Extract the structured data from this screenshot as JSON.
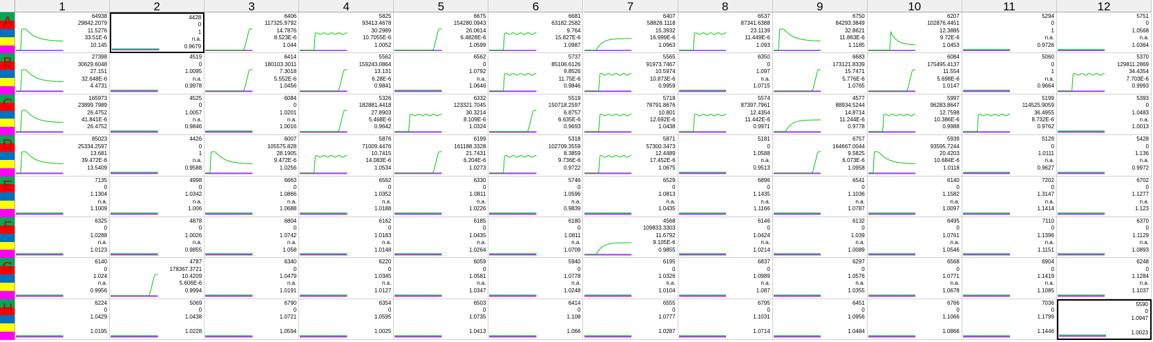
{
  "plate": {
    "columns": [
      "1",
      "2",
      "3",
      "4",
      "5",
      "6",
      "7",
      "8",
      "9",
      "10",
      "11",
      "12"
    ],
    "rows": [
      "A",
      "B",
      "C",
      "D",
      "E",
      "F",
      "G",
      "H"
    ],
    "row_strip_colors": [
      "#00a651",
      "#ff0000",
      "#0070c0",
      "#ffff00",
      "#ff00ff"
    ],
    "trace_color": "#00c800",
    "baseline_color": "#e000e0",
    "baseline2_color": "#4060ff",
    "selected_wells": [
      "A2",
      "H12"
    ],
    "wells": {
      "A1": {
        "v": [
          "64938",
          "29842.2079",
          "11.5276",
          "33.51E-6",
          "10.145"
        ],
        "trace": "peak"
      },
      "A2": {
        "v": [
          "4428",
          "0",
          "1",
          "n.a.",
          "0.9679"
        ],
        "trace": "flat"
      },
      "A3": {
        "v": [
          "6406",
          "117325.9792",
          "14.7876",
          "8.523E-6",
          "1.044"
        ],
        "trace": "late"
      },
      "A4": {
        "v": [
          "5825",
          "93413.4678",
          "30.2989",
          "10.7055E-6",
          "1.0052"
        ],
        "trace": "step"
      },
      "A5": {
        "v": [
          "6675",
          "154280.0943",
          "26.0614",
          "6.4828E-6",
          "1.0599"
        ],
        "trace": "late"
      },
      "A6": {
        "v": [
          "6681",
          "63182.2582",
          "9.764",
          "15.827E-6",
          "1.0987"
        ],
        "trace": "step"
      },
      "A7": {
        "v": [
          "6407",
          "58828.1118",
          "15.3932",
          "16.999E-6",
          "1.0963"
        ],
        "trace": "slow"
      },
      "A8": {
        "v": [
          "6537",
          "87341.6388",
          "23.1139",
          "11.449E-6",
          "1.093"
        ],
        "trace": "step"
      },
      "A9": {
        "v": [
          "6750",
          "84293.3849",
          "32.8621",
          "11.863E-6",
          "1.1185"
        ],
        "trace": "peak"
      },
      "A10": {
        "v": [
          "6207",
          "102876.4451",
          "12.3885",
          "9.72E-6",
          "1.0453"
        ],
        "trace": "mid"
      },
      "A11": {
        "v": [
          "5294",
          "0",
          "1",
          "n.a.",
          "0.9726"
        ],
        "trace": "flat"
      },
      "A12": {
        "v": [
          "5751",
          "0",
          "1.0568",
          "n.a.",
          "1.0364"
        ],
        "trace": "flat"
      },
      "B1": {
        "v": [
          "27398",
          "30629.6048",
          "27.151",
          "32.648E-6",
          "4.4731"
        ],
        "trace": "peak"
      },
      "B2": {
        "v": [
          "4519",
          "0",
          "1.0095",
          "n.a.",
          "0.9978"
        ],
        "trace": "flat"
      },
      "B3": {
        "v": [
          "6414",
          "180103.3011",
          "7.3018",
          "5.552E-6",
          "1.0456"
        ],
        "trace": "late"
      },
      "B4": {
        "v": [
          "5562",
          "159243.0864",
          "13.131",
          "6.28E-6",
          "0.9841"
        ],
        "trace": "late"
      },
      "B5": {
        "v": [
          "6562",
          "0",
          "1.0792",
          "n.a.",
          "1.0646"
        ],
        "trace": "flat"
      },
      "B6": {
        "v": [
          "5737",
          "85106.6126",
          "9.8526",
          "11.75E-6",
          "0.9846"
        ],
        "trace": "step"
      },
      "B7": {
        "v": [
          "5565",
          "91973.7467",
          "10.5974",
          "10.873E-6",
          "0.9959"
        ],
        "trace": "step"
      },
      "B8": {
        "v": [
          "6350",
          "0",
          "1.097",
          "n.a.",
          "1.0715"
        ],
        "trace": "flat"
      },
      "B9": {
        "v": [
          "6683",
          "173121.8339",
          "15.7471",
          "5.776E-6",
          "1.0765"
        ],
        "trace": "late"
      },
      "B10": {
        "v": [
          "6084",
          "175495.4137",
          "11.554",
          "5.698E-6",
          "1.0147"
        ],
        "trace": "late"
      },
      "B11": {
        "v": [
          "5060",
          "0",
          "1",
          "n.a.",
          "0.9664"
        ],
        "trace": "flat"
      },
      "B12": {
        "v": [
          "5370",
          "129811.2869",
          "34.4354",
          "7.703E-6",
          "0.9993"
        ],
        "trace": "step"
      },
      "C1": {
        "v": [
          "165973",
          "23899.7989",
          "26.4752",
          "41.841E-6",
          "26.4752"
        ],
        "trace": "peak"
      },
      "C2": {
        "v": [
          "4525",
          "0",
          "1.0057",
          "n.a.",
          "0.9846"
        ],
        "trace": "flat"
      },
      "C3": {
        "v": [
          "6084",
          "0",
          "1.0201",
          "n.a.",
          "1.0016"
        ],
        "trace": "flat"
      },
      "C4": {
        "v": [
          "5326",
          "182881.4418",
          "27.8903",
          "5.468E-6",
          "0.9642"
        ],
        "trace": "late"
      },
      "C5": {
        "v": [
          "6332",
          "123321.7045",
          "30.3214",
          "8.109E-6",
          "1.0324"
        ],
        "trace": "step"
      },
      "C6": {
        "v": [
          "5519",
          "150718.2597",
          "6.8757",
          "6.635E-6",
          "0.9693"
        ],
        "trace": "late"
      },
      "C7": {
        "v": [
          "5718",
          "78791.8676",
          "10.801",
          "12.692E-6",
          "1.0438"
        ],
        "trace": "step"
      },
      "C8": {
        "v": [
          "5574",
          "87397.7961",
          "12.4354",
          "11.442E-6",
          "0.9971"
        ],
        "trace": "step"
      },
      "C9": {
        "v": [
          "4577",
          "88934.5244",
          "14.8714",
          "11.244E-6",
          "0.9778"
        ],
        "trace": "slow"
      },
      "C10": {
        "v": [
          "5997",
          "96283.8647",
          "12.7598",
          "10.386E-6",
          "0.9988"
        ],
        "trace": "step"
      },
      "C11": {
        "v": [
          "5199",
          "114525.9059",
          "36.4955",
          "8.732E-6",
          "0.9762"
        ],
        "trace": "step"
      },
      "C12": {
        "v": [
          "5393",
          "0",
          "1.0483",
          "n.a.",
          "1.0013"
        ],
        "trace": "flat"
      },
      "D1": {
        "v": [
          "85023",
          "25334.2597",
          "13.681",
          "39.472E-6",
          "13.5409"
        ],
        "trace": "peak"
      },
      "D2": {
        "v": [
          "4426",
          "0",
          "1",
          "n.a.",
          "0.9588"
        ],
        "trace": "flat"
      },
      "D3": {
        "v": [
          "6007",
          "105575.828",
          "28.1905",
          "9.472E-6",
          "1.0256"
        ],
        "trace": "peak"
      },
      "D4": {
        "v": [
          "5876",
          "71009.4476",
          "10.7415",
          "14.083E-6",
          "1.0534"
        ],
        "trace": "step"
      },
      "D5": {
        "v": [
          "6199",
          "161188.3328",
          "21.7431",
          "6.204E-6",
          "1.0273"
        ],
        "trace": "late"
      },
      "D6": {
        "v": [
          "5318",
          "102709.3559",
          "8.3859",
          "9.736E-6",
          "0.9722"
        ],
        "trace": "step"
      },
      "D7": {
        "v": [
          "5871",
          "57300.3473",
          "12.4489",
          "17.452E-6",
          "1.0675"
        ],
        "trace": "step"
      },
      "D8": {
        "v": [
          "5181",
          "0",
          "1.0588",
          "n.a.",
          "0.9513"
        ],
        "trace": "flat"
      },
      "D9": {
        "v": [
          "6757",
          "164667.0044",
          "9.5825",
          "6.073E-6",
          "1.0958"
        ],
        "trace": "late"
      },
      "D10": {
        "v": [
          "5939",
          "93595.7244",
          "20.4203",
          "10.684E-6",
          "1.0118"
        ],
        "trace": "peak"
      },
      "D11": {
        "v": [
          "5129",
          "0",
          "1.0111",
          "n.a.",
          "0.9627"
        ],
        "trace": "flat"
      },
      "D12": {
        "v": [
          "5428",
          "0",
          "1.136",
          "n.a.",
          "0.9972"
        ],
        "trace": "flat"
      },
      "E1": {
        "v": [
          "7135",
          "0",
          "1.1304",
          "n.a.",
          "1.1009"
        ],
        "trace": "flat"
      },
      "E2": {
        "v": [
          "4998",
          "0",
          "1.0342",
          "n.a.",
          "1.006"
        ],
        "trace": "flat"
      },
      "E3": {
        "v": [
          "6663",
          "0",
          "1.0866",
          "n.a.",
          "1.0688"
        ],
        "trace": "flat"
      },
      "E4": {
        "v": [
          "6562",
          "0",
          "1.0352",
          "n.a.",
          "1.0188"
        ],
        "trace": "flat"
      },
      "E5": {
        "v": [
          "6330",
          "0",
          "1.0811",
          "n.a.",
          "1.0226"
        ],
        "trace": "flat"
      },
      "E6": {
        "v": [
          "5746",
          "0",
          "1.0596",
          "n.a.",
          "0.9839"
        ],
        "trace": "flat"
      },
      "E7": {
        "v": [
          "6529",
          "0",
          "1.0813",
          "n.a.",
          "1.0435"
        ],
        "trace": "flat"
      },
      "E8": {
        "v": [
          "6896",
          "0",
          "1.1435",
          "n.a.",
          "1.1166"
        ],
        "trace": "flat"
      },
      "E9": {
        "v": [
          "6541",
          "0",
          "1.1036",
          "n.a.",
          "1.0787"
        ],
        "trace": "flat"
      },
      "E10": {
        "v": [
          "6140",
          "0",
          "1.1582",
          "n.a.",
          "1.0097"
        ],
        "trace": "flat"
      },
      "E11": {
        "v": [
          "7202",
          "0",
          "1.3147",
          "n.a.",
          "1.1414"
        ],
        "trace": "flat"
      },
      "E12": {
        "v": [
          "6702",
          "0",
          "1.1277",
          "n.a.",
          "1.123"
        ],
        "trace": "flat"
      },
      "F1": {
        "v": [
          "6325",
          "0",
          "1.0288",
          "n.a.",
          "1.0123"
        ],
        "trace": "flat"
      },
      "F2": {
        "v": [
          "4878",
          "0",
          "1.0026",
          "n.a.",
          "0.9855"
        ],
        "trace": "flat"
      },
      "F3": {
        "v": [
          "6804",
          "0",
          "1.0742",
          "n.a.",
          "1.058"
        ],
        "trace": "flat"
      },
      "F4": {
        "v": [
          "6162",
          "0",
          "1.0183",
          "n.a.",
          "1.0148"
        ],
        "trace": "flat"
      },
      "F5": {
        "v": [
          "6185",
          "0",
          "1.0435",
          "n.a.",
          "1.0264"
        ],
        "trace": "flat"
      },
      "F6": {
        "v": [
          "6180",
          "0",
          "1.0811",
          "n.a.",
          "1.0709"
        ],
        "trace": "flat"
      },
      "F7": {
        "v": [
          "4568",
          "109833.3303",
          "11.6792",
          "9.105E-6",
          "0.9855"
        ],
        "trace": "slow"
      },
      "F8": {
        "v": [
          "6146",
          "0",
          "1.0424",
          "n.a.",
          "1.0214"
        ],
        "trace": "flat"
      },
      "F9": {
        "v": [
          "6132",
          "0",
          "1.039",
          "n.a.",
          "1.0089"
        ],
        "trace": "flat"
      },
      "F10": {
        "v": [
          "6495",
          "0",
          "1.0761",
          "n.a.",
          "1.0546"
        ],
        "trace": "flat"
      },
      "F11": {
        "v": [
          "7110",
          "0",
          "1.1396",
          "n.a.",
          "1.1151"
        ],
        "trace": "flat"
      },
      "F12": {
        "v": [
          "6370",
          "0",
          "1.1129",
          "n.a.",
          "1.0893"
        ],
        "trace": "flat"
      },
      "G1": {
        "v": [
          "6140",
          "0",
          "1.024",
          "n.a.",
          "0.9956"
        ],
        "trace": "flat"
      },
      "G2": {
        "v": [
          "4787",
          "178367.3721",
          "10.4209",
          "5.606E-6",
          "0.9994"
        ],
        "trace": "late"
      },
      "G3": {
        "v": [
          "6340",
          "0",
          "1.0479",
          "n.a.",
          "1.0191"
        ],
        "trace": "flat"
      },
      "G4": {
        "v": [
          "6220",
          "0",
          "1.0345",
          "n.a.",
          "1.0127"
        ],
        "trace": "flat"
      },
      "G5": {
        "v": [
          "6059",
          "0",
          "1.0581",
          "n.a.",
          "1.0347"
        ],
        "trace": "flat"
      },
      "G6": {
        "v": [
          "5940",
          "0",
          "1.0778",
          "n.a.",
          "1.0248"
        ],
        "trace": "flat"
      },
      "G7": {
        "v": [
          "6195",
          "0",
          "1.0326",
          "n.a.",
          "1.0104"
        ],
        "trace": "flat"
      },
      "G8": {
        "v": [
          "6837",
          "0",
          "1.0989",
          "n.a.",
          "1.087"
        ],
        "trace": "flat"
      },
      "G9": {
        "v": [
          "6297",
          "0",
          "1.0576",
          "n.a.",
          "1.0355"
        ],
        "trace": "flat"
      },
      "G10": {
        "v": [
          "6568",
          "0",
          "1.0771",
          "n.a.",
          "1.0678"
        ],
        "trace": "flat"
      },
      "G11": {
        "v": [
          "6904",
          "0",
          "1.1419",
          "n.a.",
          "1.1085"
        ],
        "trace": "flat"
      },
      "G12": {
        "v": [
          "6248",
          "0",
          "1.1284",
          "n.a.",
          "1.1037"
        ],
        "trace": "flat"
      },
      "H1": {
        "v": [
          "6224",
          "0",
          "1.0429",
          "",
          "1.0195"
        ],
        "trace": "flat"
      },
      "H2": {
        "v": [
          "5069",
          "0",
          "1.0438",
          "",
          "1.0228"
        ],
        "trace": "flat"
      },
      "H3": {
        "v": [
          "6790",
          "0",
          "1.0721",
          "",
          "1.0594"
        ],
        "trace": "flat"
      },
      "H4": {
        "v": [
          "6354",
          "0",
          "1.0595",
          "",
          "1.0025"
        ],
        "trace": "flat"
      },
      "H5": {
        "v": [
          "6503",
          "0",
          "1.0735",
          "",
          "1.0413"
        ],
        "trace": "flat"
      },
      "H6": {
        "v": [
          "6414",
          "0",
          "1.108",
          "",
          "1.066"
        ],
        "trace": "flat"
      },
      "H7": {
        "v": [
          "6555",
          "0",
          "1.0777",
          "",
          "1.0287"
        ],
        "trace": "flat"
      },
      "H8": {
        "v": [
          "6795",
          "0",
          "1.1031",
          "",
          "1.0714"
        ],
        "trace": "flat"
      },
      "H9": {
        "v": [
          "6451",
          "0",
          "1.0956",
          "",
          "1.0484"
        ],
        "trace": "flat"
      },
      "H10": {
        "v": [
          "6766",
          "0",
          "1.1066",
          "",
          "1.0866"
        ],
        "trace": "flat"
      },
      "H11": {
        "v": [
          "7036",
          "0",
          "1.1799",
          "",
          "1.1446"
        ],
        "trace": "flat"
      },
      "H12": {
        "v": [
          "5590",
          "0",
          "1.0947",
          "",
          "1.0023"
        ],
        "trace": "flat"
      }
    }
  }
}
